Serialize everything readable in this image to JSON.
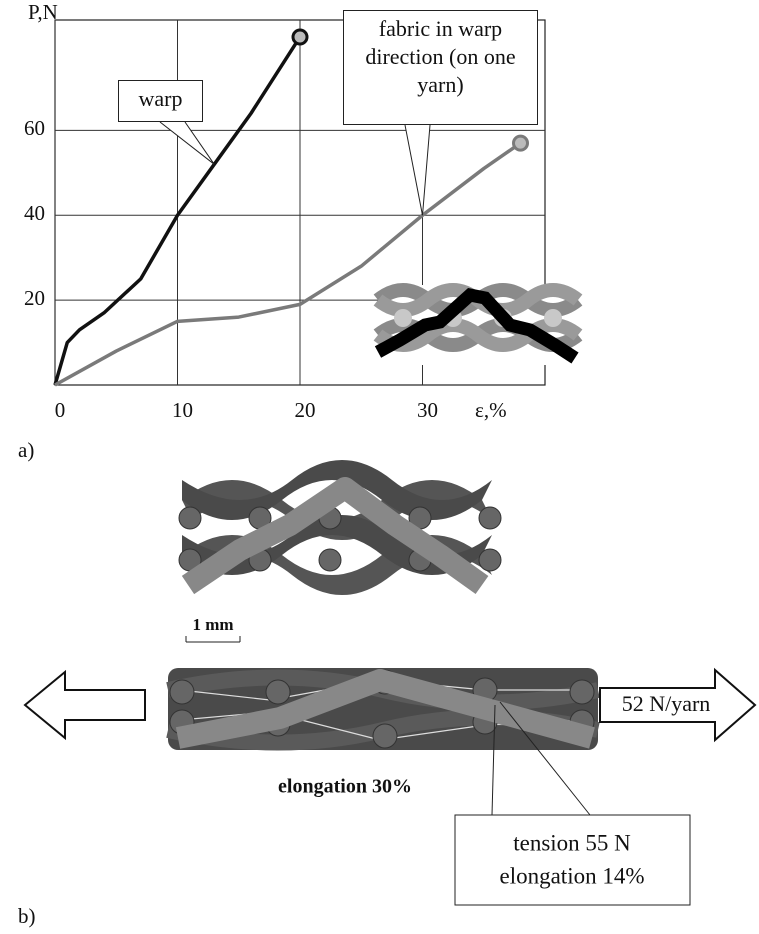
{
  "chart_data": {
    "type": "line",
    "y_label": "P,N",
    "x_label": "ε,%",
    "xlim": [
      0,
      40
    ],
    "ylim": [
      0,
      86
    ],
    "xticks": [
      0,
      10,
      20,
      30
    ],
    "yticks": [
      20,
      40,
      60
    ],
    "grid": true,
    "series": [
      {
        "name": "warp",
        "color": "#111111",
        "x": [
          0,
          1,
          2,
          4,
          7,
          10,
          13,
          16,
          20
        ],
        "values": [
          0,
          10,
          13,
          17,
          25,
          40,
          52,
          64,
          82
        ]
      },
      {
        "name": "fabric in warp direction (on one yarn)",
        "color": "#7a7a7a",
        "x": [
          0,
          5,
          10,
          15,
          20,
          25,
          30,
          35,
          38
        ],
        "values": [
          0,
          8,
          15,
          16,
          19,
          28,
          40,
          51,
          57
        ]
      }
    ]
  },
  "panel_a_label": "a)",
  "panel_b_label": "b)",
  "scale_bar": "1 mm",
  "fabric_elongation": "elongation 30%",
  "force_label": "52 N/yarn",
  "callout": {
    "line1": "tension 55 N",
    "line2": "elongation 14%"
  }
}
